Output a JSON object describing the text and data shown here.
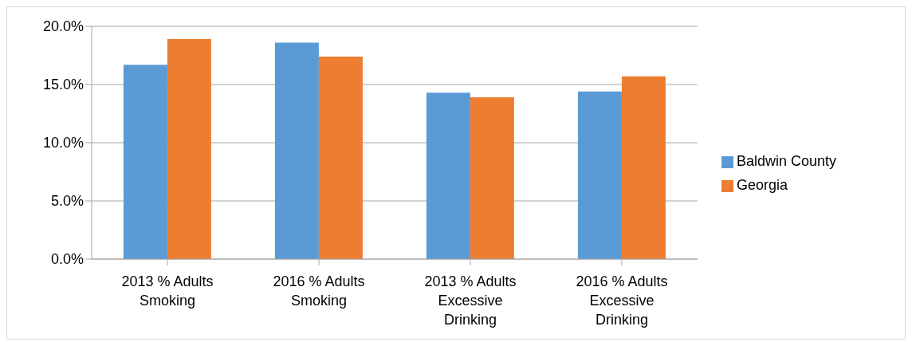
{
  "chart_data": {
    "type": "bar",
    "categories": [
      "2013 % Adults Smoking",
      "2016 % Adults Smoking",
      "2013 % Adults Excessive Drinking",
      "2016 % Adults Excessive Drinking"
    ],
    "series": [
      {
        "name": "Baldwin County",
        "color": "#5b9bd5",
        "values": [
          16.7,
          18.6,
          14.3,
          14.4
        ]
      },
      {
        "name": "Georgia",
        "color": "#ed7d31",
        "values": [
          18.9,
          17.4,
          13.9,
          15.7
        ]
      }
    ],
    "ylim": [
      0,
      20
    ],
    "yticks": [
      {
        "value": 0,
        "label": "0.0%"
      },
      {
        "value": 5,
        "label": "5.0%"
      },
      {
        "value": 10,
        "label": "10.0%"
      },
      {
        "value": 15,
        "label": "15.0%"
      },
      {
        "value": 20,
        "label": "20.0%"
      }
    ],
    "grid": "y",
    "legend": "right"
  }
}
